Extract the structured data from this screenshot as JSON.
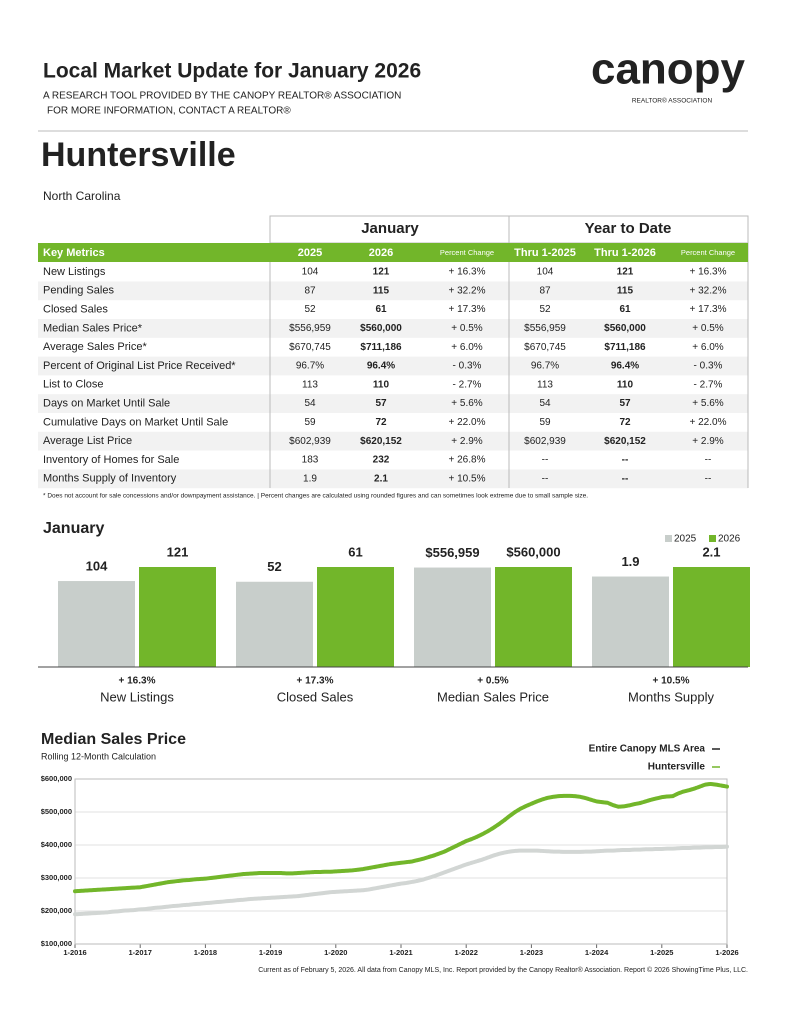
{
  "header": {
    "title": "Local Market Update for January 2026",
    "subtitle1": "A RESEARCH TOOL PROVIDED BY THE CANOPY REALTOR® ASSOCIATION",
    "subtitle2": "FOR MORE INFORMATION, CONTACT A REALTOR®",
    "logo": "canopy",
    "logo_sub": "REALTOR® ASSOCIATION"
  },
  "location": {
    "city": "Huntersville",
    "state": "North Carolina"
  },
  "table": {
    "groups": [
      "January",
      "Year to Date"
    ],
    "columns": [
      "Key Metrics",
      "2025",
      "2026",
      "Percent Change",
      "Thru 1-2025",
      "Thru 1-2026",
      "Percent Change"
    ],
    "rows": [
      [
        "New Listings",
        "104",
        "121",
        "+ 16.3%",
        "104",
        "121",
        "+ 16.3%"
      ],
      [
        "Pending Sales",
        "87",
        "115",
        "+ 32.2%",
        "87",
        "115",
        "+ 32.2%"
      ],
      [
        "Closed Sales",
        "52",
        "61",
        "+ 17.3%",
        "52",
        "61",
        "+ 17.3%"
      ],
      [
        "Median Sales Price*",
        "$556,959",
        "$560,000",
        "+ 0.5%",
        "$556,959",
        "$560,000",
        "+ 0.5%"
      ],
      [
        "Average Sales Price*",
        "$670,745",
        "$711,186",
        "+ 6.0%",
        "$670,745",
        "$711,186",
        "+ 6.0%"
      ],
      [
        "Percent of Original List Price Received*",
        "96.7%",
        "96.4%",
        "- 0.3%",
        "96.7%",
        "96.4%",
        "- 0.3%"
      ],
      [
        "List to Close",
        "113",
        "110",
        "- 2.7%",
        "113",
        "110",
        "- 2.7%"
      ],
      [
        "Days on Market Until Sale",
        "54",
        "57",
        "+ 5.6%",
        "54",
        "57",
        "+ 5.6%"
      ],
      [
        "Cumulative Days on Market Until Sale",
        "59",
        "72",
        "+ 22.0%",
        "59",
        "72",
        "+ 22.0%"
      ],
      [
        "Average List Price",
        "$602,939",
        "$620,152",
        "+ 2.9%",
        "$602,939",
        "$620,152",
        "+ 2.9%"
      ],
      [
        "Inventory of Homes for Sale",
        "183",
        "232",
        "+ 26.8%",
        "--",
        "--",
        "--"
      ],
      [
        "Months Supply of Inventory",
        "1.9",
        "2.1",
        "+ 10.5%",
        "--",
        "--",
        "--"
      ]
    ],
    "footnote": "* Does not account for sale concessions and/or downpayment assistance.  |  Percent changes are calculated using rounded figures and can sometimes look extreme due to small sample size."
  },
  "chart_data": [
    {
      "type": "bar",
      "title": "January",
      "categories": [
        "New Listings",
        "Closed Sales",
        "Median Sales Price",
        "Months Supply"
      ],
      "change_labels": [
        "+ 16.3%",
        "+ 17.3%",
        "+ 0.5%",
        "+ 10.5%"
      ],
      "series": [
        {
          "name": "2025",
          "color": "#c8cecb",
          "values": [
            104,
            52,
            556959,
            1.9
          ],
          "value_labels": [
            "104",
            "52",
            "$556,959",
            "1.9"
          ]
        },
        {
          "name": "2026",
          "color": "#72b62a",
          "values": [
            121,
            61,
            560000,
            2.1
          ],
          "value_labels": [
            "121",
            "61",
            "$560,000",
            "2.1"
          ]
        }
      ]
    },
    {
      "type": "line",
      "title": "Median Sales Price",
      "subtitle": "Rolling 12-Month Calculation",
      "x": [
        "1-2016",
        null,
        null,
        null,
        null,
        null,
        null,
        null,
        null,
        null,
        null,
        null,
        "1-2017",
        null,
        null,
        null,
        null,
        null,
        null,
        null,
        null,
        null,
        null,
        null,
        "1-2018",
        null,
        null,
        null,
        null,
        null,
        null,
        null,
        null,
        null,
        null,
        null,
        "1-2019",
        null,
        null,
        null,
        null,
        null,
        null,
        null,
        null,
        null,
        null,
        null,
        "1-2020",
        null,
        null,
        null,
        null,
        null,
        null,
        null,
        null,
        null,
        null,
        null,
        "1-2021",
        null,
        null,
        null,
        null,
        null,
        null,
        null,
        null,
        null,
        null,
        null,
        "1-2022",
        null,
        null,
        null,
        null,
        null,
        null,
        null,
        null,
        null,
        null,
        null,
        "1-2023",
        null,
        null,
        null,
        null,
        null,
        null,
        null,
        null,
        null,
        null,
        null,
        "1-2024",
        null,
        null,
        null,
        null,
        null,
        null,
        null,
        null,
        null,
        null,
        null,
        "1-2025",
        null,
        null,
        null,
        null,
        null,
        null,
        null,
        null,
        null,
        null,
        null,
        "1-2026"
      ],
      "ylim": [
        100000,
        600000
      ],
      "yticks": [
        {
          "value": 100000,
          "label": "$100,000"
        },
        {
          "value": 200000,
          "label": "$200,000"
        },
        {
          "value": 300000,
          "label": "$300,000"
        },
        {
          "value": 400000,
          "label": "$400,000"
        },
        {
          "value": 500000,
          "label": "$500,000"
        },
        {
          "value": 600000,
          "label": "$600,000"
        }
      ],
      "grid": true,
      "series": [
        {
          "name": "Entire Canopy MLS Area",
          "color": "#d2d6d4",
          "values": [
            190000,
            191000,
            192000,
            193000,
            194000,
            195000,
            196000,
            198000,
            199000,
            201000,
            202000,
            203000,
            205000,
            206000,
            208000,
            210000,
            211000,
            213000,
            215000,
            216000,
            218000,
            219000,
            221000,
            222000,
            224000,
            225000,
            227000,
            228000,
            230000,
            231000,
            233000,
            234000,
            236000,
            237000,
            238000,
            239000,
            240000,
            241000,
            242000,
            243000,
            244000,
            245000,
            247000,
            249000,
            251000,
            253000,
            255000,
            257000,
            258000,
            259000,
            260000,
            261000,
            262000,
            263000,
            265000,
            268000,
            271000,
            274000,
            277000,
            280000,
            283000,
            285000,
            288000,
            291000,
            295000,
            300000,
            305000,
            311000,
            317000,
            323000,
            329000,
            335000,
            341000,
            346000,
            351000,
            356000,
            362000,
            368000,
            373000,
            377000,
            380000,
            382000,
            383000,
            383000,
            383000,
            383000,
            382000,
            381000,
            380000,
            380000,
            379000,
            379000,
            379000,
            379000,
            380000,
            380000,
            381000,
            382000,
            383000,
            383000,
            384000,
            385000,
            385000,
            386000,
            386000,
            387000,
            387000,
            388000,
            388000,
            389000,
            389000,
            390000,
            391000,
            391000,
            392000,
            392000,
            393000,
            393000,
            394000,
            394000,
            395000
          ]
        },
        {
          "name": "Huntersville",
          "color": "#72b62a",
          "values": [
            260000,
            261000,
            262000,
            263000,
            264000,
            265000,
            266000,
            267000,
            268000,
            269000,
            270000,
            271000,
            272000,
            275000,
            278000,
            281000,
            284000,
            287000,
            289000,
            291000,
            293000,
            294000,
            296000,
            297000,
            298000,
            300000,
            302000,
            304000,
            306000,
            308000,
            310000,
            312000,
            313000,
            314000,
            315000,
            315000,
            315000,
            315000,
            315000,
            314000,
            314000,
            315000,
            316000,
            317000,
            318000,
            318000,
            319000,
            319000,
            320000,
            321000,
            322000,
            323000,
            325000,
            327000,
            330000,
            333000,
            336000,
            339000,
            342000,
            344000,
            346000,
            348000,
            350000,
            354000,
            358000,
            363000,
            368000,
            374000,
            380000,
            388000,
            396000,
            404000,
            412000,
            418000,
            425000,
            433000,
            442000,
            452000,
            463000,
            475000,
            488000,
            500000,
            510000,
            518000,
            525000,
            532000,
            538000,
            543000,
            546000,
            548000,
            549000,
            549000,
            548000,
            546000,
            542000,
            537000,
            532000,
            530000,
            528000,
            521000,
            516000,
            517000,
            520000,
            524000,
            527000,
            532000,
            537000,
            541000,
            545000,
            547000,
            548000,
            556000,
            562000,
            566000,
            571000,
            577000,
            583000,
            585000,
            583000,
            580000,
            577000
          ]
        }
      ]
    }
  ],
  "footer": "Current as of February 5, 2026. All data from Canopy MLS, Inc. Report provided by the Canopy Realtor® Association. Report © 2026 ShowingTime Plus, LLC."
}
